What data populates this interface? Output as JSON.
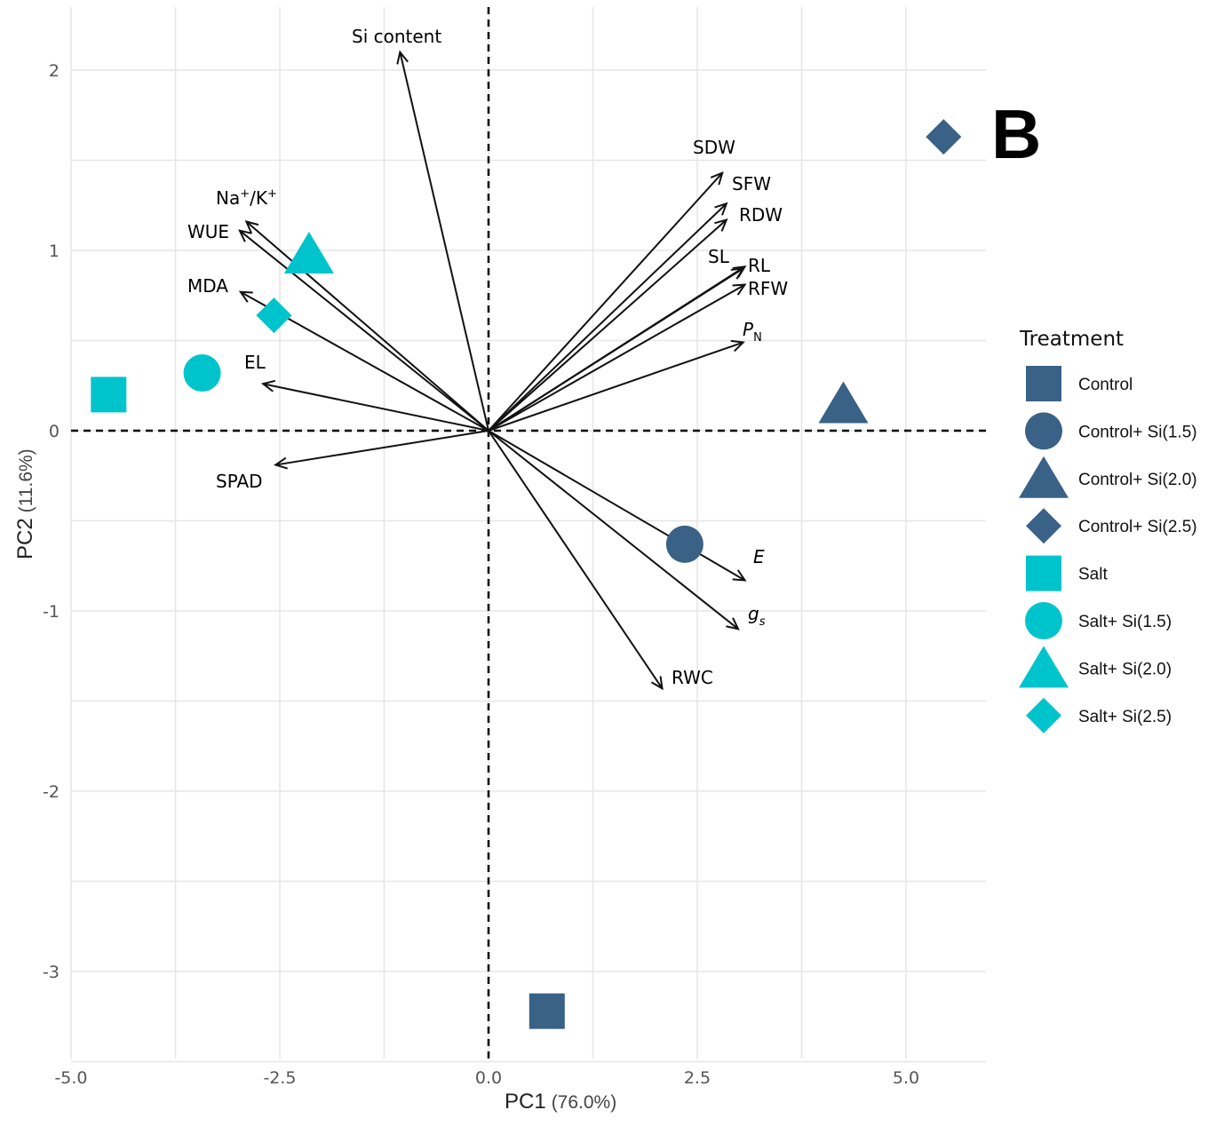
{
  "chart_data": {
    "type": "scatter",
    "subtype": "pca-biplot",
    "panel_label": "B",
    "xlabel": "PC1",
    "xlabel_pct": "(76.0%)",
    "ylabel": "PC2",
    "ylabel_pct": "(11.6%)",
    "xlim": [
      -5.0,
      6.0
    ],
    "ylim": [
      -3.5,
      2.35
    ],
    "x_ticks": [
      -5.0,
      -2.5,
      0.0,
      2.5,
      5.0
    ],
    "x_tick_labels": [
      "-5.0",
      "-2.5",
      "0.0",
      "2.5",
      "5.0"
    ],
    "y_ticks": [
      -3,
      -2,
      -1,
      0,
      1,
      2
    ],
    "y_tick_labels": [
      "-3",
      "-2",
      "-1",
      "0",
      "1",
      "2"
    ],
    "grid": true,
    "reference_lines": "dashed lines at x=0 and y=0",
    "legend": {
      "title": "Treatment",
      "placement": "right",
      "entries": [
        {
          "label": "Control",
          "shape": "square",
          "color": "#3a6186"
        },
        {
          "label": "Control+ Si(1.5)",
          "shape": "circle",
          "color": "#3a6186"
        },
        {
          "label": "Control+ Si(2.0)",
          "shape": "triangle",
          "color": "#3a6186"
        },
        {
          "label": "Control+ Si(2.5)",
          "shape": "diamond",
          "color": "#3a6186"
        },
        {
          "label": "Salt",
          "shape": "square",
          "color": "#00c4cc"
        },
        {
          "label": "Salt+ Si(1.5)",
          "shape": "circle",
          "color": "#00c4cc"
        },
        {
          "label": "Salt+ Si(2.0)",
          "shape": "triangle",
          "color": "#00c4cc"
        },
        {
          "label": "Salt+ Si(2.5)",
          "shape": "diamond",
          "color": "#00c4cc"
        }
      ]
    },
    "points": [
      {
        "treatment": "Control",
        "x": 0.7,
        "y": -3.22
      },
      {
        "treatment": "Control+ Si(1.5)",
        "x": 2.35,
        "y": -0.63
      },
      {
        "treatment": "Control+ Si(2.0)",
        "x": 4.25,
        "y": 0.15
      },
      {
        "treatment": "Control+ Si(2.5)",
        "x": 5.45,
        "y": 1.63
      },
      {
        "treatment": "Salt",
        "x": -4.55,
        "y": 0.2
      },
      {
        "treatment": "Salt+ Si(1.5)",
        "x": -3.43,
        "y": 0.32
      },
      {
        "treatment": "Salt+ Si(2.0)",
        "x": -2.15,
        "y": 0.98
      },
      {
        "treatment": "Salt+ Si(2.5)",
        "x": -2.57,
        "y": 0.64
      }
    ],
    "loadings": [
      {
        "label": "Si content",
        "x": -1.06,
        "y": 2.1
      },
      {
        "label": "SDW",
        "x": 2.8,
        "y": 1.43
      },
      {
        "label": "SFW",
        "x": 2.85,
        "y": 1.26
      },
      {
        "label": "RDW",
        "x": 2.85,
        "y": 1.17
      },
      {
        "label": "SL",
        "x": 3.05,
        "y": 0.9
      },
      {
        "label": "RL",
        "x": 3.07,
        "y": 0.91
      },
      {
        "label": "RFW",
        "x": 3.07,
        "y": 0.81
      },
      {
        "label": "P_N",
        "x": 3.05,
        "y": 0.49
      },
      {
        "label": "Na+/K+",
        "x": -2.9,
        "y": 1.16
      },
      {
        "label": "WUE",
        "x": -2.98,
        "y": 1.11
      },
      {
        "label": "MDA",
        "x": -2.97,
        "y": 0.77
      },
      {
        "label": "EL",
        "x": -2.7,
        "y": 0.26
      },
      {
        "label": "SPAD",
        "x": -2.55,
        "y": -0.19
      },
      {
        "label": "E",
        "x": 3.07,
        "y": -0.83
      },
      {
        "label": "g_s",
        "x": 2.99,
        "y": -1.1
      },
      {
        "label": "RWC",
        "x": 2.08,
        "y": -1.43
      }
    ],
    "loading_labels": {
      "si": "Si content",
      "sdw": "SDW",
      "sfw": "SFW",
      "rdw": "RDW",
      "sl": "SL",
      "rl": "RL",
      "rfw": "RFW",
      "pn_main": "P",
      "pn_sub": "N",
      "nak_na": "Na",
      "nak_plus1": "+",
      "nak_slash": "/K",
      "nak_plus2": "+",
      "wue": "WUE",
      "mda": "MDA",
      "el": "EL",
      "spad": "SPAD",
      "e": "E",
      "gs_main": "g",
      "gs_sub": "s",
      "rwc": "RWC"
    },
    "colors": {
      "control": "#3a6186",
      "salt": "#00c4cc",
      "grid": "#e6e6e6",
      "arrow": "#111111"
    }
  }
}
